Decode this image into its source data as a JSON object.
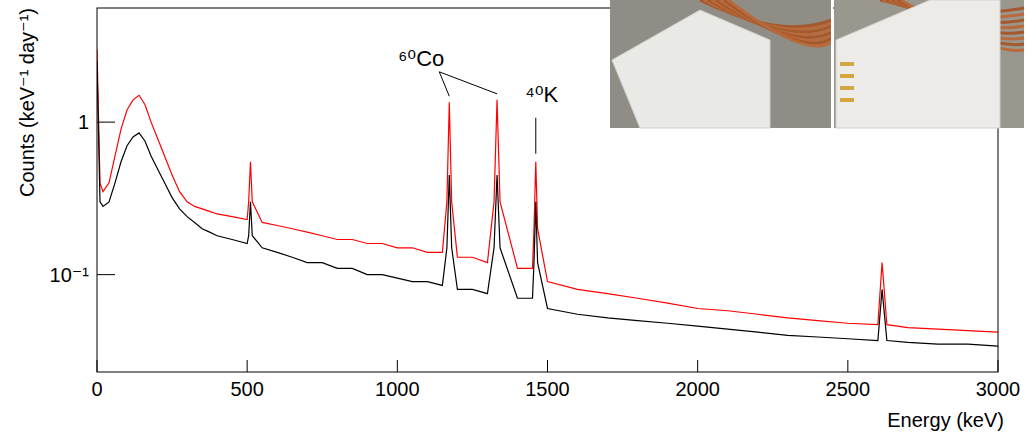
{
  "chart_data": {
    "type": "line",
    "line_style": "solid",
    "x_label": "Energy (keV)",
    "y_label": "Counts (keV⁻¹ day⁻¹)",
    "log": "y",
    "grid": false,
    "xlim": [
      0,
      3000
    ],
    "xticks": [
      0,
      500,
      1000,
      1500,
      2000,
      2500,
      3000
    ],
    "ylim": [
      0.023,
      5.6
    ],
    "yticks": [
      {
        "value": 0.1,
        "label": "10⁻¹"
      },
      1
    ],
    "annotations": [
      {
        "text": "⁶⁰Co",
        "x": [
          1173,
          1332
        ]
      },
      {
        "text": "⁴⁰K",
        "x": [
          1461
        ]
      }
    ],
    "x": [
      0,
      10,
      20,
      40,
      60,
      80,
      100,
      120,
      140,
      160,
      180,
      200,
      225,
      250,
      275,
      300,
      325,
      350,
      375,
      400,
      450,
      500,
      505,
      511,
      517,
      550,
      600,
      650,
      700,
      750,
      800,
      850,
      900,
      950,
      1000,
      1050,
      1100,
      1150,
      1165,
      1173,
      1181,
      1200,
      1250,
      1300,
      1322,
      1332,
      1342,
      1400,
      1450,
      1455,
      1461,
      1467,
      1500,
      1600,
      1700,
      1800,
      1900,
      2000,
      2100,
      2200,
      2300,
      2400,
      2500,
      2600,
      2614,
      2630,
      2700,
      2800,
      2900,
      3000
    ],
    "series": [
      {
        "color": "#ff0000",
        "values": [
          3.0,
          0.4,
          0.35,
          0.4,
          0.6,
          0.9,
          1.2,
          1.4,
          1.5,
          1.3,
          1.0,
          0.8,
          0.6,
          0.45,
          0.35,
          0.3,
          0.28,
          0.27,
          0.26,
          0.25,
          0.24,
          0.23,
          0.3,
          0.55,
          0.3,
          0.22,
          0.21,
          0.2,
          0.19,
          0.18,
          0.17,
          0.17,
          0.16,
          0.16,
          0.15,
          0.15,
          0.14,
          0.14,
          0.3,
          1.35,
          0.3,
          0.13,
          0.13,
          0.12,
          0.3,
          1.4,
          0.3,
          0.11,
          0.11,
          0.2,
          0.55,
          0.2,
          0.09,
          0.08,
          0.075,
          0.07,
          0.065,
          0.06,
          0.058,
          0.055,
          0.052,
          0.05,
          0.048,
          0.047,
          0.12,
          0.047,
          0.045,
          0.044,
          0.043,
          0.042
        ]
      },
      {
        "color": "#000000",
        "values": [
          2.5,
          0.3,
          0.28,
          0.3,
          0.4,
          0.55,
          0.7,
          0.8,
          0.85,
          0.75,
          0.6,
          0.5,
          0.4,
          0.32,
          0.27,
          0.24,
          0.22,
          0.2,
          0.19,
          0.18,
          0.17,
          0.16,
          0.18,
          0.3,
          0.18,
          0.15,
          0.14,
          0.13,
          0.12,
          0.12,
          0.11,
          0.11,
          0.1,
          0.1,
          0.095,
          0.09,
          0.09,
          0.085,
          0.15,
          0.45,
          0.15,
          0.08,
          0.08,
          0.075,
          0.15,
          0.45,
          0.15,
          0.07,
          0.07,
          0.12,
          0.3,
          0.12,
          0.06,
          0.055,
          0.052,
          0.05,
          0.048,
          0.046,
          0.044,
          0.042,
          0.04,
          0.039,
          0.038,
          0.037,
          0.08,
          0.037,
          0.036,
          0.035,
          0.035,
          0.034
        ]
      }
    ]
  }
}
